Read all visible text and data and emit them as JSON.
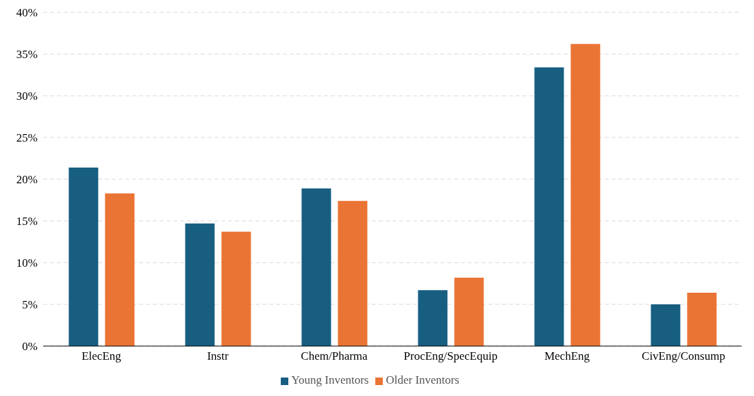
{
  "chart_data": {
    "type": "bar",
    "categories": [
      "ElecEng",
      "Instr",
      "Chem/Pharma",
      "ProcEng/SpecEquip",
      "MechEng",
      "CivEng/Consump"
    ],
    "series": [
      {
        "name": "Young Inventors",
        "color": "#175e81",
        "values": [
          21.4,
          14.7,
          18.9,
          6.7,
          33.4,
          5.0
        ]
      },
      {
        "name": "Older Inventors",
        "color": "#ea7434",
        "values": [
          18.3,
          13.7,
          17.4,
          8.2,
          36.2,
          6.4
        ]
      }
    ],
    "ylim": [
      0,
      40
    ],
    "yticks": [
      {
        "value": 0,
        "label": "0%"
      },
      {
        "value": 5,
        "label": "5%"
      },
      {
        "value": 10,
        "label": "10%"
      },
      {
        "value": 15,
        "label": "15%"
      },
      {
        "value": 20,
        "label": "20%"
      },
      {
        "value": 25,
        "label": "25%"
      },
      {
        "value": 30,
        "label": "30%"
      },
      {
        "value": 35,
        "label": "35%"
      },
      {
        "value": 40,
        "label": "40%"
      }
    ],
    "grid": "y",
    "legend": "bottom"
  }
}
